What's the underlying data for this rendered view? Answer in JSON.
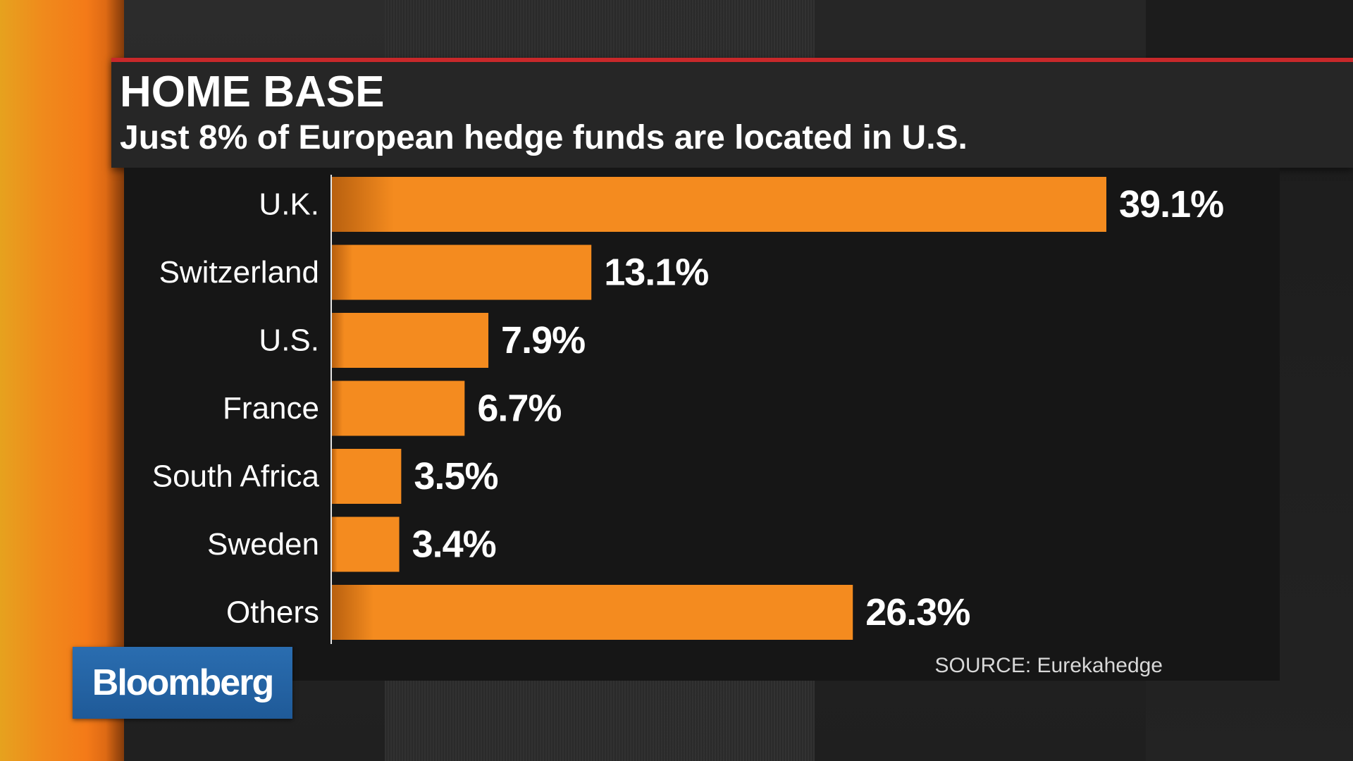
{
  "brand": {
    "logo_text": "Bloomberg",
    "color": "#1f5a98"
  },
  "colors": {
    "accent_red": "#c8282a",
    "bar_orange": "#f48b1f",
    "side_stripe": "#f08a1c"
  },
  "chart_data": {
    "type": "bar",
    "orientation": "horizontal",
    "title": "HOME BASE",
    "subtitle": "Just 8% of European hedge funds are located in U.S.",
    "categories": [
      "U.K.",
      "Switzerland",
      "U.S.",
      "France",
      "South Africa",
      "Sweden",
      "Others"
    ],
    "values": [
      39.1,
      13.1,
      7.9,
      6.7,
      3.5,
      3.4,
      26.3
    ],
    "value_labels": [
      "39.1%",
      "13.1%",
      "7.9%",
      "6.7%",
      "3.5%",
      "3.4%",
      "26.3%"
    ],
    "xlim": [
      0,
      39.1
    ],
    "xlabel": "",
    "ylabel": "",
    "grid": false,
    "source": "SOURCE: Eurekahedge"
  }
}
